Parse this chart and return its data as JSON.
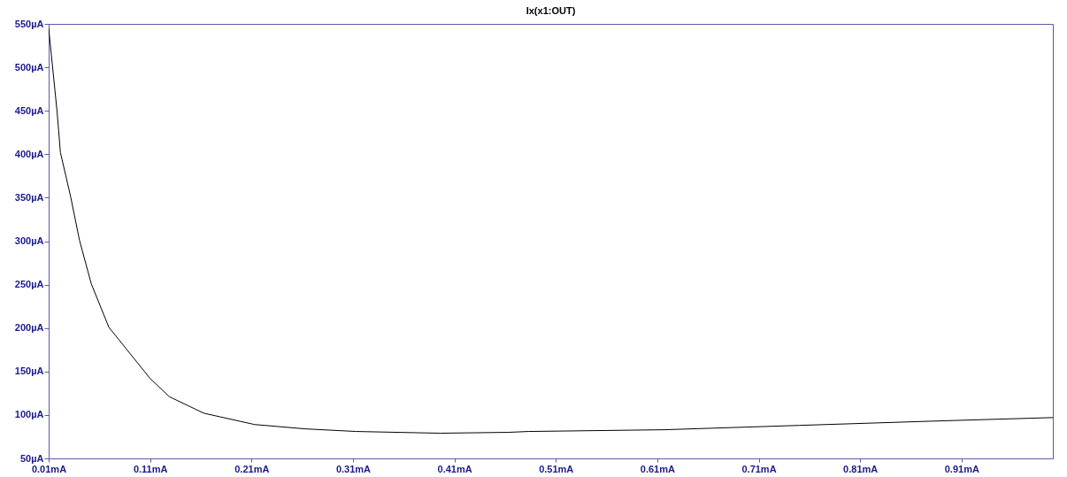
{
  "chart_data": {
    "type": "line",
    "title": "Ix(x1:OUT)",
    "x": [
      0.01,
      0.0183,
      0.0216,
      0.0317,
      0.0404,
      0.052,
      0.0693,
      0.11,
      0.129,
      0.163,
      0.213,
      0.263,
      0.313,
      0.396,
      0.463,
      0.483,
      0.617,
      0.75,
      0.884,
      1.0
    ],
    "series": [
      {
        "color": "#000000",
        "values": [
          545,
          449,
          402,
          351,
          301,
          251,
          201,
          142,
          121,
          102,
          89,
          84,
          81,
          79,
          80,
          81,
          83,
          88,
          93,
          97
        ]
      }
    ],
    "xlim": [
      0.01,
      1.0
    ],
    "xticks": [
      {
        "value": 0.01,
        "label": "0.01mA"
      },
      {
        "value": 0.11,
        "label": "0.11mA"
      },
      {
        "value": 0.21,
        "label": "0.21mA"
      },
      {
        "value": 0.31,
        "label": "0.31mA"
      },
      {
        "value": 0.41,
        "label": "0.41mA"
      },
      {
        "value": 0.51,
        "label": "0.51mA"
      },
      {
        "value": 0.61,
        "label": "0.61mA"
      },
      {
        "value": 0.71,
        "label": "0.71mA"
      },
      {
        "value": 0.81,
        "label": "0.81mA"
      },
      {
        "value": 0.91,
        "label": "0.91mA"
      }
    ],
    "ylim": [
      50,
      550
    ],
    "yticks": [
      {
        "value": 50,
        "label": "50µA"
      },
      {
        "value": 100,
        "label": "100µA"
      },
      {
        "value": 150,
        "label": "150µA"
      },
      {
        "value": 200,
        "label": "200µA"
      },
      {
        "value": 250,
        "label": "250µA"
      },
      {
        "value": 300,
        "label": "300µA"
      },
      {
        "value": 350,
        "label": "350µA"
      },
      {
        "value": 400,
        "label": "400µA"
      },
      {
        "value": 450,
        "label": "450µA"
      },
      {
        "value": 500,
        "label": "500µA"
      },
      {
        "value": 550,
        "label": "550µA"
      }
    ],
    "grid": false,
    "legend": false,
    "marker": "none",
    "line_style": "solid"
  }
}
